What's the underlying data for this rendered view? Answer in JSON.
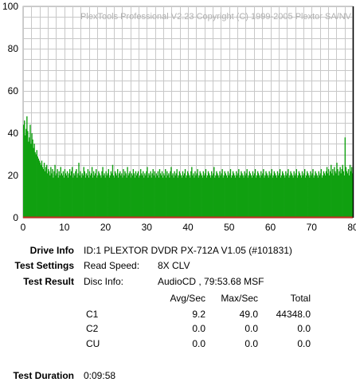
{
  "watermark": "PlexTools Professional V2.23 Copyright (C) 1999-2005 Plextor SA/NV",
  "colors": {
    "bars": "#10a010",
    "grid": "#c8c8c8",
    "baseline": "#c03020",
    "end_marker": "#000000"
  },
  "chart_data": {
    "type": "bar",
    "title": "",
    "xlabel": "",
    "ylabel": "",
    "xlim": [
      0,
      80
    ],
    "ylim": [
      0,
      100
    ],
    "x_ticks": [
      0,
      10,
      20,
      30,
      40,
      50,
      60,
      70,
      80
    ],
    "y_ticks": [
      0,
      20,
      40,
      60,
      80,
      100
    ],
    "grid": true,
    "end_marker_x": 80,
    "series": [
      {
        "bin_minutes": 0.2,
        "values": [
          44,
          46,
          39,
          42,
          48,
          41,
          36,
          38,
          44,
          35,
          40,
          37,
          33,
          35,
          31,
          30,
          32,
          29,
          28,
          27,
          26,
          25,
          27,
          24,
          23,
          26,
          22,
          24,
          25,
          21,
          23,
          22,
          20,
          24,
          21,
          23,
          19,
          22,
          25,
          20,
          21,
          23,
          19,
          22,
          20,
          24,
          21,
          20,
          22,
          19,
          23,
          21,
          20,
          22,
          19,
          21,
          23,
          20,
          22,
          24,
          19,
          21,
          20,
          22,
          23,
          19,
          21,
          26,
          20,
          22,
          19,
          21,
          20,
          24,
          22,
          19,
          21,
          20,
          23,
          19,
          22,
          20,
          21,
          24,
          19,
          22,
          20,
          21,
          23,
          19,
          20,
          22,
          21,
          20,
          19,
          22,
          24,
          20,
          21,
          19,
          22,
          20,
          21,
          23,
          19,
          20,
          22,
          21,
          25,
          20,
          19,
          22,
          21,
          20,
          23,
          19,
          21,
          22,
          20,
          21,
          19,
          23,
          20,
          22,
          21,
          19,
          24,
          20,
          21,
          22,
          19,
          21,
          20,
          23,
          21,
          19,
          22,
          20,
          21,
          22,
          19,
          20,
          23,
          21,
          20,
          22,
          19,
          21,
          20,
          22,
          24,
          19,
          21,
          20,
          22,
          19,
          21,
          23,
          20,
          22,
          19,
          21,
          20,
          22,
          19,
          23,
          21,
          20,
          22,
          19,
          21,
          20,
          23,
          19,
          22,
          20,
          21,
          19,
          22,
          24,
          20,
          21,
          19,
          22,
          20,
          21,
          23,
          19,
          20,
          22,
          21,
          20,
          19,
          22,
          20,
          21,
          23,
          19,
          20,
          22,
          21,
          20,
          19,
          22,
          24,
          20,
          21,
          19,
          22,
          20,
          21,
          23,
          19,
          20,
          22,
          21,
          20,
          19,
          22,
          20,
          21,
          23,
          19,
          20,
          22,
          21,
          20,
          19,
          22,
          20,
          21,
          24,
          19,
          20,
          22,
          21,
          20,
          19,
          22,
          20,
          21,
          23,
          19,
          20,
          22,
          21,
          20,
          19,
          22,
          20,
          21,
          23,
          19,
          20,
          22,
          21,
          20,
          19,
          22,
          20,
          21,
          23,
          19,
          20,
          22,
          21,
          20,
          19,
          22,
          20,
          21,
          23,
          19,
          20,
          22,
          21,
          20,
          19,
          22,
          20,
          21,
          23,
          19,
          20,
          22,
          21,
          20,
          19,
          22,
          20,
          21,
          23,
          19,
          20,
          22,
          21,
          20,
          19,
          22,
          20,
          21,
          23,
          19,
          20,
          22,
          21,
          20,
          19,
          22,
          20,
          21,
          23,
          19,
          20,
          22,
          21,
          20,
          19,
          22,
          20,
          21,
          23,
          19,
          20,
          22,
          21,
          20,
          19,
          22,
          20,
          21,
          23,
          19,
          20,
          22,
          21,
          20,
          19,
          22,
          20,
          21,
          23,
          19,
          20,
          22,
          21,
          20,
          19,
          22,
          20,
          21,
          23,
          19,
          20,
          22,
          21,
          20,
          19,
          22,
          20,
          21,
          23,
          19,
          20,
          22,
          21,
          20,
          22,
          24,
          21,
          23,
          20,
          22,
          25,
          21,
          23,
          20,
          24,
          22,
          21,
          26,
          23,
          20,
          22,
          24,
          21,
          23,
          25,
          22,
          20,
          38,
          24,
          22,
          21,
          23,
          20,
          25,
          22,
          24,
          21,
          23,
          22,
          20,
          24
        ]
      }
    ]
  },
  "info": {
    "drive_info_label": "Drive Info",
    "drive_info_value": "ID:1 PLEXTOR DVDR PX-712A V1.05 (#101831)",
    "test_settings_label": "Test Settings",
    "read_speed_label": "Read Speed:",
    "read_speed_value": "8X CLV",
    "test_result_label": "Test Result",
    "disc_info_label": "Disc Info:",
    "disc_info_value": "AudioCD , 79:53.68 MSF",
    "test_duration_label": "Test Duration",
    "test_duration_value": "0:09:58"
  },
  "results": {
    "headers": [
      "Avg/Sec",
      "Max/Sec",
      "Total"
    ],
    "rows": [
      {
        "name": "C1",
        "avg": "9.2",
        "max": "49.0",
        "total": "44348.0"
      },
      {
        "name": "C2",
        "avg": "0.0",
        "max": "0.0",
        "total": "0.0"
      },
      {
        "name": "CU",
        "avg": "0.0",
        "max": "0.0",
        "total": "0.0"
      }
    ]
  }
}
